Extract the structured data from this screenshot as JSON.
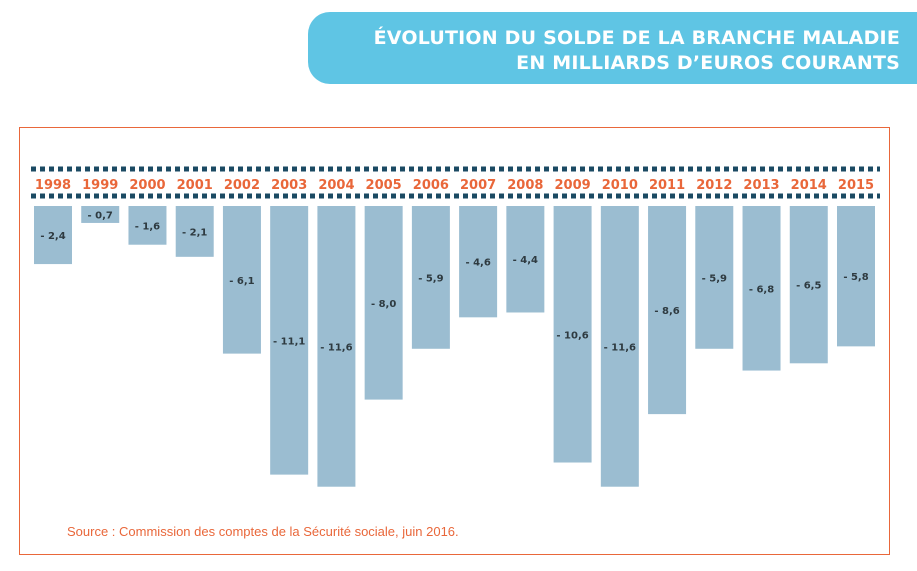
{
  "header": {
    "title_line1": "ÉVOLUTION DU SOLDE DE LA BRANCHE MALADIE",
    "title_line2": "EN MILLIARDS D’EUROS COURANTS"
  },
  "source": "Source : Commission des comptes de la Sécurité sociale, juin 2016.",
  "colors": {
    "banner": "#5fc5e4",
    "bar": "#9bbdd1",
    "year_label": "#e9673a",
    "dotted_line": "#1b4a63",
    "frame": "#e9673a"
  },
  "chart_data": {
    "type": "bar",
    "title": "ÉVOLUTION DU SOLDE DE LA BRANCHE MALADIE EN MILLIARDS D’EUROS COURANTS",
    "categories": [
      "1998",
      "1999",
      "2000",
      "2001",
      "2002",
      "2003",
      "2004",
      "2005",
      "2006",
      "2007",
      "2008",
      "2009",
      "2010",
      "2011",
      "2012",
      "2013",
      "2014",
      "2015"
    ],
    "values": [
      -2.4,
      -0.7,
      -1.6,
      -2.1,
      -6.1,
      -11.1,
      -11.6,
      -8.0,
      -5.9,
      -4.6,
      -4.4,
      -10.6,
      -11.6,
      -8.6,
      -5.9,
      -6.8,
      -6.5,
      -5.8
    ],
    "value_labels": [
      "- 2,4",
      "- 0,7",
      "- 1,6",
      "- 2,1",
      "- 6,1",
      "- 11,1",
      "- 11,6",
      "- 8,0",
      "- 5,9",
      "- 4,6",
      "- 4,4",
      "- 10,6",
      "- 11,6",
      "- 8,6",
      "- 5,9",
      "- 6,8",
      "- 6,5",
      "- 5,8"
    ],
    "xlabel": "",
    "ylabel": "",
    "ylim": [
      -11.6,
      0
    ],
    "grid": false
  }
}
